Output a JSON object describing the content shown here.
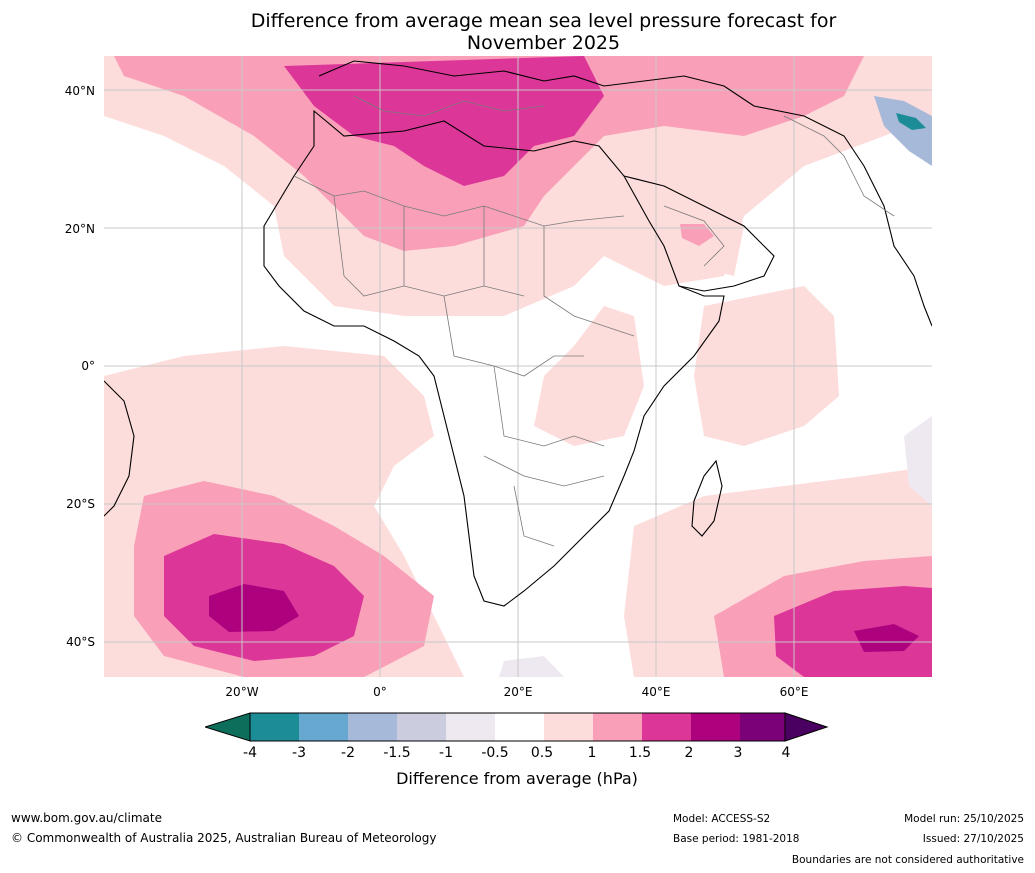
{
  "title": {
    "line1": "Difference from average mean sea level pressure forecast for",
    "line2": "November 2025"
  },
  "axes": {
    "lat_ticks": [
      "40°N",
      "20°N",
      "0°",
      "20°S",
      "40°S"
    ],
    "lat_values": [
      40,
      20,
      0,
      -20,
      -40
    ],
    "lon_ticks": [
      "20°W",
      "0°",
      "20°E",
      "40°E",
      "60°E"
    ],
    "lon_values": [
      -20,
      0,
      20,
      40,
      60
    ],
    "lat_range": [
      -45,
      45
    ],
    "lon_range": [
      -40,
      80
    ]
  },
  "colorbar": {
    "ticks": [
      "-4",
      "-3",
      "-2",
      "-1.5",
      "-1",
      "-0.5",
      "0.5",
      "1",
      "1.5",
      "2",
      "3",
      "4"
    ],
    "colors": [
      "#1c8d96",
      "#66a8cf",
      "#a6b9d8",
      "#ccccdf",
      "#eee9f1",
      "#ffffff",
      "#fddcdc",
      "#f9a0b8",
      "#dd3699",
      "#ae017e",
      "#7a0177"
    ],
    "extend_low": "#0e6e5c",
    "extend_high": "#4a0060",
    "label": "Difference from average (hPa)"
  },
  "footer": {
    "website": "www.bom.gov.au/climate",
    "copyright": "© Commonwealth of Australia 2025, Australian Bureau of Meteorology",
    "model": "Model: ACCESS-S2",
    "base_period": "Base period: 1981-2018",
    "model_run": "Model run: 25/10/2025",
    "issued": "Issued: 27/10/2025",
    "disclaimer": "Boundaries are not considered authoritative"
  }
}
